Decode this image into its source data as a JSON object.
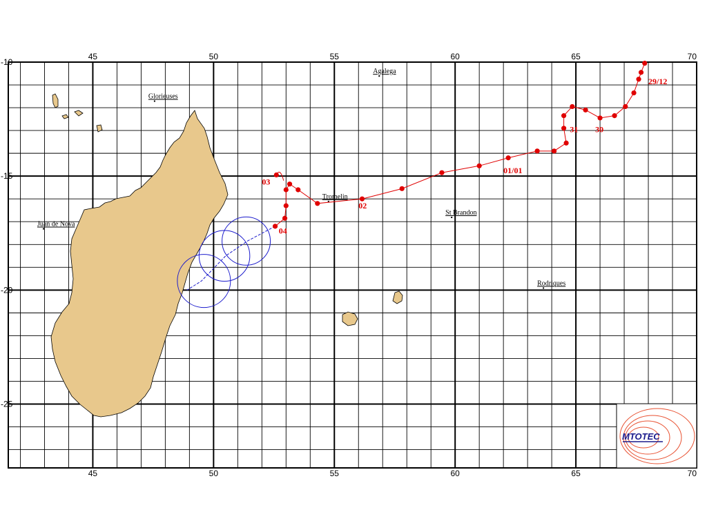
{
  "map": {
    "lon_range": [
      41.5,
      70
    ],
    "lat_range": [
      -10,
      -27.8
    ],
    "major_lon_ticks": [
      45,
      50,
      55,
      60,
      65,
      70
    ],
    "major_lat_ticks": [
      -10,
      -15,
      -20,
      -25
    ],
    "minor_step_deg": 1,
    "grid": true,
    "colors": {
      "land": "#e8c88c",
      "track": "#e00000",
      "forecast": "#1a1acc",
      "grid": "#000000",
      "logo": "#e85030"
    }
  },
  "places": [
    {
      "name": "Agalega",
      "lon": 56.6,
      "lat": -10.4
    },
    {
      "name": "Glorieuses",
      "lon": 47.3,
      "lat": -11.5
    },
    {
      "name": "Tromelin",
      "lon": 54.5,
      "lat": -15.9
    },
    {
      "name": "St Brandon",
      "lon": 59.6,
      "lat": -16.6
    },
    {
      "name": "Juan de Nova",
      "lon": 42.7,
      "lat": -17.1
    },
    {
      "name": "Rodriques",
      "lon": 63.4,
      "lat": -19.7
    }
  ],
  "track": {
    "points": [
      {
        "lon": 67.85,
        "lat": -10.05
      },
      {
        "lon": 67.7,
        "lat": -10.45
      },
      {
        "lon": 67.6,
        "lat": -10.75
      },
      {
        "lon": 67.4,
        "lat": -11.35
      },
      {
        "lon": 67.05,
        "lat": -11.95
      },
      {
        "lon": 66.6,
        "lat": -12.35
      },
      {
        "lon": 66.0,
        "lat": -12.45
      },
      {
        "lon": 65.4,
        "lat": -12.1
      },
      {
        "lon": 64.85,
        "lat": -11.95
      },
      {
        "lon": 64.5,
        "lat": -12.35
      },
      {
        "lon": 64.5,
        "lat": -12.9
      },
      {
        "lon": 64.6,
        "lat": -13.55
      },
      {
        "lon": 64.1,
        "lat": -13.9
      },
      {
        "lon": 63.4,
        "lat": -13.9
      },
      {
        "lon": 62.2,
        "lat": -14.2
      },
      {
        "lon": 61.0,
        "lat": -14.55
      },
      {
        "lon": 59.45,
        "lat": -14.85
      },
      {
        "lon": 57.8,
        "lat": -15.55
      },
      {
        "lon": 56.15,
        "lat": -16.0
      },
      {
        "lon": 54.3,
        "lat": -16.2
      },
      {
        "lon": 53.5,
        "lat": -15.6
      },
      {
        "lon": 53.15,
        "lat": -15.35
      },
      {
        "lon": 53.0,
        "lat": -15.6
      },
      {
        "lon": 53.0,
        "lat": -16.3
      },
      {
        "lon": 52.95,
        "lat": -16.85
      },
      {
        "lon": 52.55,
        "lat": -17.2
      }
    ],
    "loop": [
      {
        "lon": 52.6,
        "lat": -14.95
      },
      {
        "lon": 52.75,
        "lat": -14.85
      },
      {
        "lon": 52.9,
        "lat": -15.2
      }
    ],
    "date_labels": [
      {
        "text": "29/12",
        "lon": 68.0,
        "lat": -10.85
      },
      {
        "text": "30",
        "lon": 65.8,
        "lat": -12.95
      },
      {
        "text": "31",
        "lon": 64.75,
        "lat": -12.95
      },
      {
        "text": "01/01",
        "lon": 62.0,
        "lat": -14.75
      },
      {
        "text": "02",
        "lon": 56.0,
        "lat": -16.3
      },
      {
        "text": "03",
        "lon": 52.0,
        "lat": -15.25
      },
      {
        "text": "04",
        "lon": 52.7,
        "lat": -17.4
      }
    ]
  },
  "forecast": {
    "line": [
      {
        "lon": 52.55,
        "lat": -17.2
      },
      {
        "lon": 51.4,
        "lat": -17.85
      },
      {
        "lon": 50.5,
        "lat": -18.5
      },
      {
        "lon": 49.5,
        "lat": -19.6
      },
      {
        "lon": 48.9,
        "lat": -20.0
      }
    ],
    "circles": [
      {
        "lon": 51.35,
        "lat": -17.85,
        "radius_deg": 1.0
      },
      {
        "lon": 50.45,
        "lat": -18.5,
        "radius_deg": 1.05
      },
      {
        "lon": 49.6,
        "lat": -19.6,
        "radius_deg": 1.1
      }
    ]
  },
  "logo": {
    "text": "MTOTEC"
  }
}
